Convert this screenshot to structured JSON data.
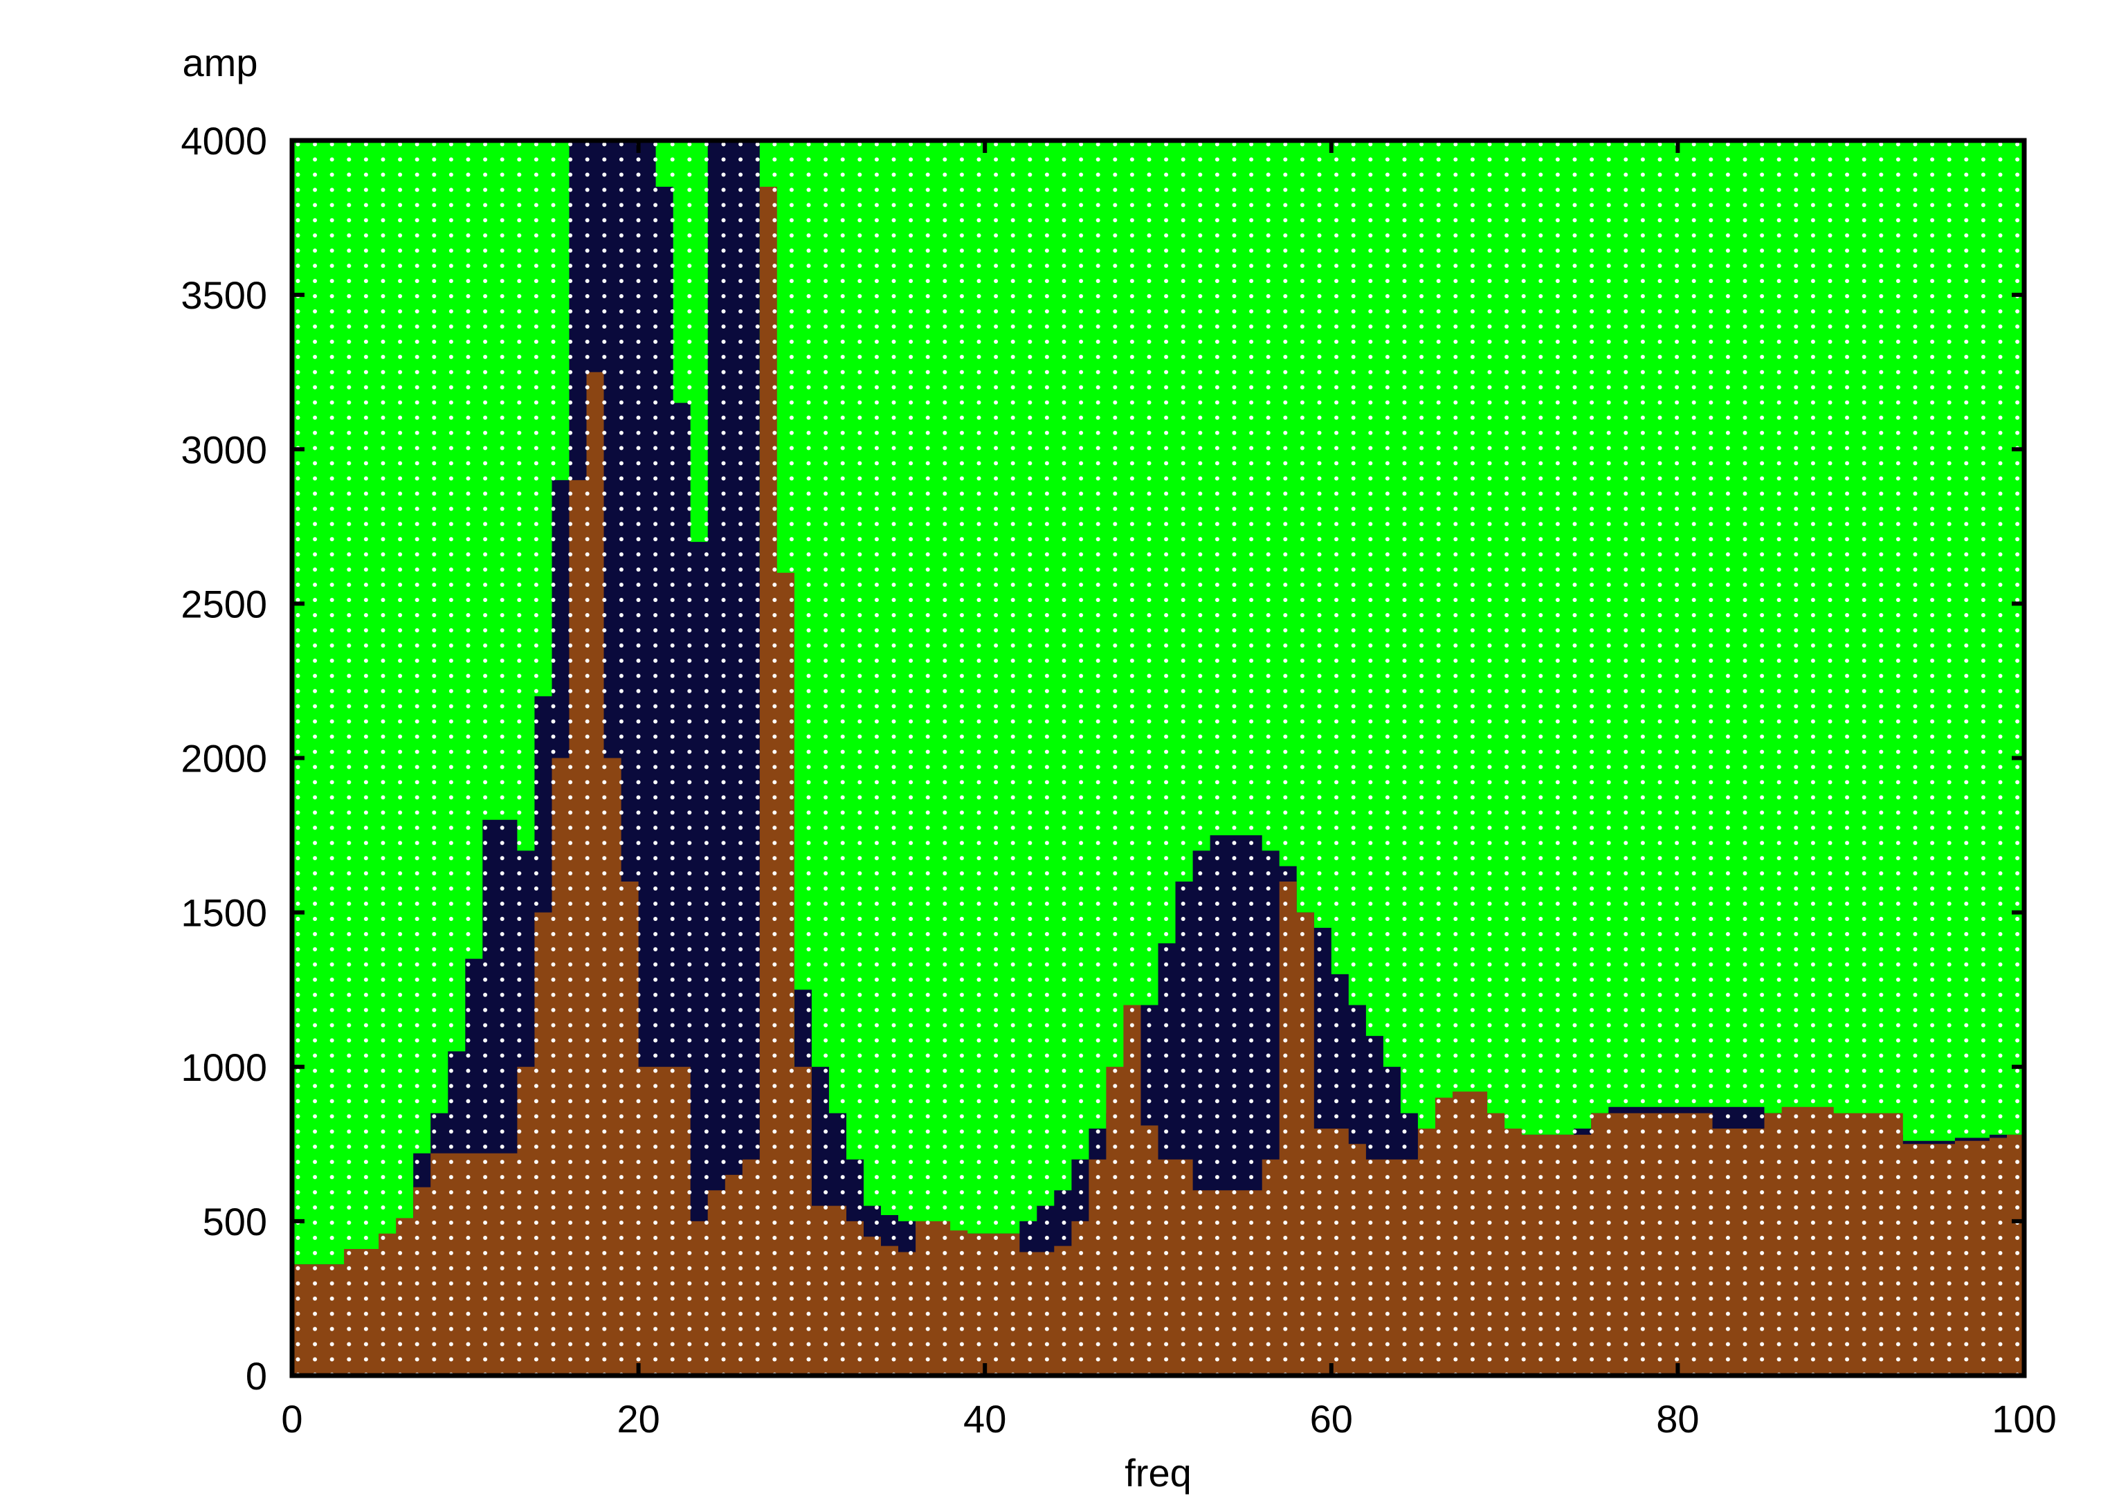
{
  "chart_data": {
    "type": "heatmap",
    "title": "",
    "xlabel": "freq",
    "ylabel": "amp",
    "xlim": [
      0,
      100
    ],
    "ylim": [
      0,
      4000
    ],
    "xticks": [
      0,
      20,
      40,
      60,
      80,
      100
    ],
    "yticks": [
      0,
      500,
      1000,
      1500,
      2000,
      2500,
      3000,
      3500,
      4000
    ],
    "grid": false,
    "legend": "none",
    "colors": {
      "background": "#00ff00",
      "series_fill": "#8b4513",
      "band": "#0a0a3c",
      "dot": "#ffffff",
      "frame": "#000000"
    },
    "series": [
      {
        "role": "spectrum",
        "x": [
          0,
          2,
          3,
          4,
          5,
          6,
          7,
          8,
          9,
          10,
          11,
          12,
          13,
          14,
          15,
          16,
          17,
          18,
          19,
          20,
          21,
          22,
          23,
          24,
          25,
          26,
          27,
          28,
          29,
          30,
          31,
          32,
          33,
          34,
          35,
          36,
          37,
          38,
          39,
          40,
          41,
          42,
          43,
          44,
          45,
          46,
          47,
          48,
          49,
          50,
          51,
          52,
          53,
          54,
          55,
          56,
          57,
          58,
          59,
          60,
          61,
          62,
          63,
          64,
          65,
          66,
          67,
          68,
          69,
          70,
          71,
          72,
          73,
          74,
          75,
          76,
          77,
          78,
          79,
          80,
          81,
          82,
          83,
          84,
          85,
          86,
          87,
          88,
          89,
          90,
          91,
          92,
          93,
          94,
          95,
          96,
          97,
          98,
          99,
          100
        ],
        "y": [
          360,
          360,
          410,
          410,
          460,
          510,
          610,
          720,
          720,
          720,
          720,
          720,
          1000,
          1500,
          2000,
          2900,
          3250,
          2000,
          1600,
          1000,
          1000,
          1000,
          500,
          600,
          650,
          700,
          3850,
          2600,
          1000,
          550,
          550,
          500,
          450,
          420,
          400,
          500,
          500,
          470,
          460,
          460,
          460,
          400,
          400,
          420,
          500,
          700,
          1000,
          1200,
          810,
          700,
          700,
          600,
          600,
          600,
          600,
          700,
          1600,
          1500,
          800,
          800,
          750,
          700,
          700,
          700,
          800,
          900,
          920,
          920,
          850,
          800,
          780,
          780,
          780,
          780,
          850,
          850,
          850,
          850,
          850,
          850,
          850,
          800,
          800,
          800,
          850,
          870,
          870,
          870,
          850,
          850,
          850,
          850,
          750,
          750,
          750,
          760,
          760,
          770,
          780,
          780
        ]
      },
      {
        "role": "envelope-upper",
        "x": [
          0,
          7,
          8,
          9,
          10,
          11,
          12,
          13,
          14,
          15,
          16,
          17,
          18,
          19,
          20,
          21,
          22,
          23,
          24,
          25,
          26,
          27,
          28,
          29,
          30,
          31,
          32,
          33,
          34,
          35,
          36,
          37,
          40,
          41,
          42,
          43,
          44,
          45,
          46,
          47,
          48,
          49,
          50,
          51,
          52,
          53,
          54,
          55,
          56,
          57,
          58,
          59,
          60,
          61,
          62,
          63,
          64,
          65,
          66,
          67,
          68,
          69,
          70,
          71,
          72,
          73,
          74,
          75,
          76,
          77,
          78,
          79,
          80,
          81,
          82,
          83,
          84,
          85,
          86,
          87,
          88,
          89,
          90,
          91,
          92,
          93,
          94,
          95,
          96,
          97,
          98,
          99,
          100
        ],
        "y": [
          360,
          720,
          850,
          1050,
          1350,
          1800,
          1800,
          1700,
          2200,
          2900,
          4000,
          4000,
          4000,
          4000,
          4000,
          3850,
          3150,
          2700,
          4000,
          4000,
          4000,
          2600,
          1000,
          1250,
          1000,
          850,
          700,
          550,
          520,
          500,
          480,
          460,
          460,
          460,
          500,
          550,
          600,
          700,
          800,
          850,
          1000,
          1200,
          1400,
          1600,
          1700,
          1750,
          1750,
          1750,
          1700,
          1650,
          1500,
          1450,
          1300,
          1200,
          1100,
          1000,
          850,
          800,
          800,
          780,
          780,
          780,
          780,
          780,
          780,
          780,
          800,
          850,
          870,
          870,
          870,
          870,
          870,
          870,
          870,
          870,
          870,
          850,
          820,
          820,
          820,
          820,
          820,
          800,
          780,
          760,
          760,
          760,
          770,
          770,
          780,
          780,
          780
        ],
        "note": "boundary between background and band"
      }
    ]
  }
}
